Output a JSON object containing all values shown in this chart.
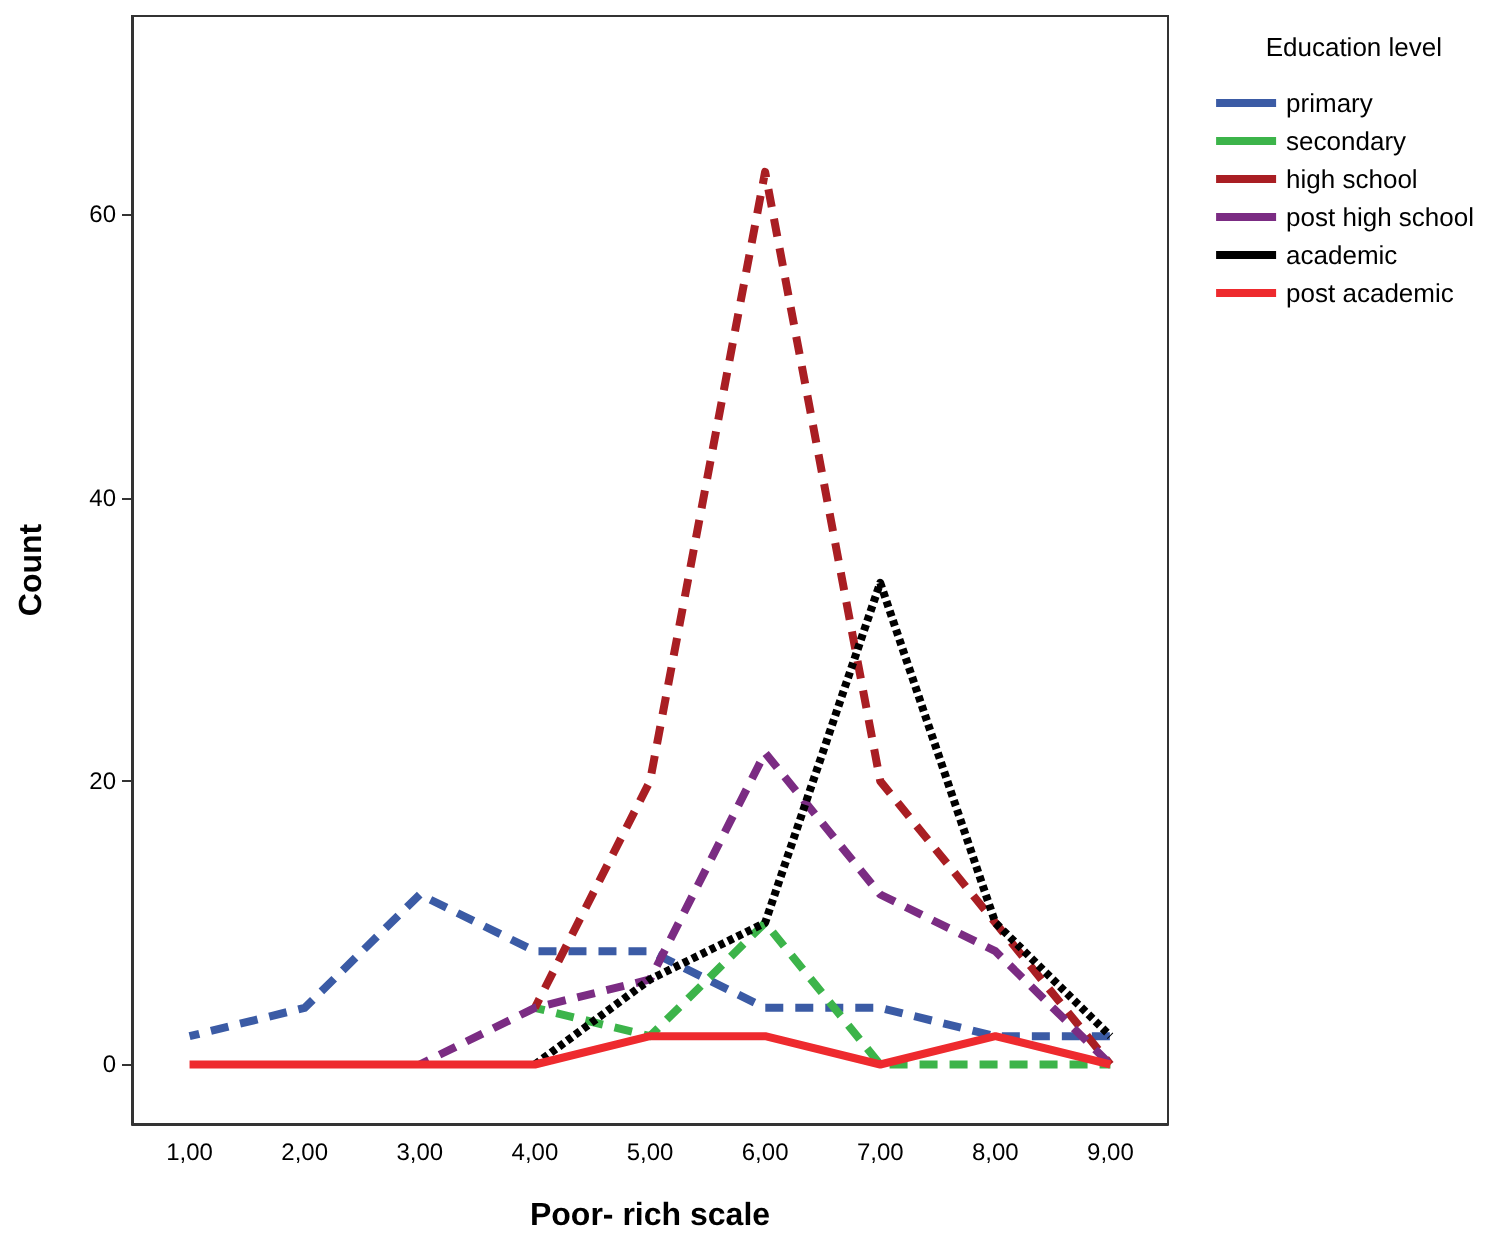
{
  "chart_data": {
    "type": "line",
    "xlabel": "Poor- rich scale",
    "ylabel": "Count",
    "legend_title": "Education level",
    "categories": [
      "1,00",
      "2,00",
      "3,00",
      "4,00",
      "5,00",
      "6,00",
      "7,00",
      "8,00",
      "9,00"
    ],
    "series": [
      {
        "name": "primary",
        "color": "#3b5ba5",
        "line_style": "dashed",
        "values": [
          2,
          4,
          12,
          8,
          8,
          4,
          4,
          2,
          2
        ]
      },
      {
        "name": "secondary",
        "color": "#3cb44a",
        "line_style": "dashed",
        "values": [
          null,
          null,
          null,
          4,
          2,
          10,
          0,
          0,
          0
        ]
      },
      {
        "name": "high school",
        "color": "#a91e23",
        "line_style": "dashed",
        "values": [
          null,
          null,
          null,
          4,
          20,
          63,
          20,
          10,
          0
        ]
      },
      {
        "name": "post high school",
        "color": "#7b2c83",
        "line_style": "dashed",
        "values": [
          null,
          null,
          0,
          4,
          6,
          22,
          12,
          8,
          0
        ]
      },
      {
        "name": "academic",
        "color": "#000000",
        "line_style": "dotted",
        "values": [
          null,
          null,
          null,
          0,
          6,
          10,
          34,
          10,
          2
        ]
      },
      {
        "name": "post academic",
        "color": "#ee2a2e",
        "line_style": "solid",
        "values": [
          0,
          0,
          0,
          0,
          2,
          2,
          0,
          2,
          0
        ]
      }
    ],
    "ylim": [
      -4.2,
      74
    ],
    "yticks": [
      0,
      20,
      40,
      60
    ],
    "grid": false,
    "legend": "right",
    "marker": "none"
  }
}
